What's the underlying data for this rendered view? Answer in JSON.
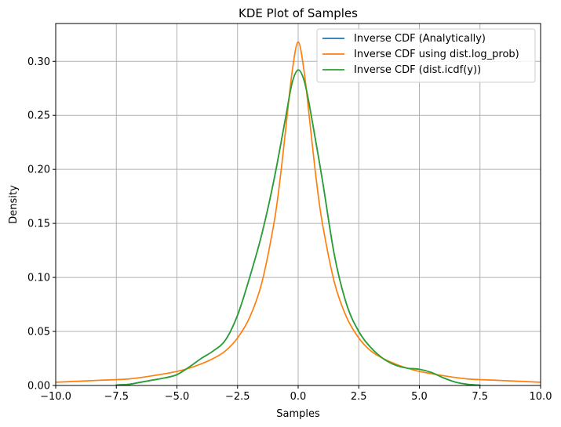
{
  "chart_data": {
    "type": "line",
    "title": "KDE Plot of Samples",
    "xlabel": "Samples",
    "ylabel": "Density",
    "xlim": [
      -10,
      10
    ],
    "ylim": [
      0,
      0.335
    ],
    "grid": true,
    "legend_position": "top-right",
    "xticks": [
      -10,
      -7.5,
      -5,
      -2.5,
      0,
      2.5,
      5,
      7.5,
      10
    ],
    "xtick_labels": [
      "−10.0",
      "−7.5",
      "−5.0",
      "−2.5",
      "0.0",
      "2.5",
      "5.0",
      "7.5",
      "10.0"
    ],
    "yticks": [
      0,
      0.05,
      0.1,
      0.15,
      0.2,
      0.25,
      0.3
    ],
    "ytick_labels": [
      "0.00",
      "0.05",
      "0.10",
      "0.15",
      "0.20",
      "0.25",
      "0.30"
    ],
    "series": [
      {
        "name": "Inverse CDF (Analytically)",
        "color": "#1f77b4",
        "x": [
          -7.5,
          -7.0,
          -6.5,
          -6.0,
          -5.5,
          -5.0,
          -4.5,
          -4.0,
          -3.5,
          -3.0,
          -2.5,
          -2.0,
          -1.5,
          -1.0,
          -0.5,
          -0.25,
          0.0,
          0.25,
          0.5,
          1.0,
          1.5,
          2.0,
          2.5,
          3.0,
          3.5,
          4.0,
          4.5,
          5.0,
          5.5,
          6.0,
          6.5,
          7.0,
          7.5
        ],
        "y": [
          0.0005,
          0.001,
          0.003,
          0.005,
          0.007,
          0.01,
          0.017,
          0.025,
          0.032,
          0.042,
          0.065,
          0.1,
          0.14,
          0.19,
          0.25,
          0.28,
          0.292,
          0.282,
          0.255,
          0.19,
          0.12,
          0.075,
          0.05,
          0.035,
          0.025,
          0.019,
          0.016,
          0.015,
          0.012,
          0.007,
          0.003,
          0.001,
          0.0003
        ]
      },
      {
        "name": "Inverse CDF using dist.log_prob)",
        "color": "#ff7f0e",
        "x": [
          -10,
          -9,
          -8,
          -7,
          -6,
          -5,
          -4.5,
          -4,
          -3.5,
          -3,
          -2.5,
          -2,
          -1.5,
          -1,
          -0.75,
          -0.5,
          -0.25,
          0.0,
          0.25,
          0.5,
          0.75,
          1,
          1.5,
          2,
          2.5,
          3,
          3.5,
          4,
          4.5,
          5,
          6,
          7,
          8,
          9,
          10
        ],
        "y": [
          0.003,
          0.004,
          0.005,
          0.006,
          0.009,
          0.013,
          0.016,
          0.02,
          0.025,
          0.032,
          0.044,
          0.063,
          0.095,
          0.15,
          0.19,
          0.24,
          0.29,
          0.318,
          0.29,
          0.24,
          0.19,
          0.15,
          0.095,
          0.063,
          0.044,
          0.032,
          0.025,
          0.02,
          0.016,
          0.013,
          0.009,
          0.006,
          0.005,
          0.004,
          0.003
        ]
      },
      {
        "name": "Inverse CDF (dist.icdf(y))",
        "color": "#2ca02c",
        "x": [
          -7.5,
          -7.0,
          -6.5,
          -6.0,
          -5.5,
          -5.0,
          -4.5,
          -4.0,
          -3.5,
          -3.0,
          -2.5,
          -2.0,
          -1.5,
          -1.0,
          -0.5,
          -0.25,
          0.0,
          0.25,
          0.5,
          1.0,
          1.5,
          2.0,
          2.5,
          3.0,
          3.5,
          4.0,
          4.5,
          5.0,
          5.5,
          6.0,
          6.5,
          7.0,
          7.5
        ],
        "y": [
          0.0005,
          0.001,
          0.003,
          0.005,
          0.007,
          0.01,
          0.017,
          0.025,
          0.032,
          0.042,
          0.065,
          0.1,
          0.14,
          0.19,
          0.25,
          0.28,
          0.292,
          0.282,
          0.255,
          0.19,
          0.12,
          0.075,
          0.05,
          0.035,
          0.025,
          0.019,
          0.016,
          0.015,
          0.012,
          0.007,
          0.003,
          0.001,
          0.0003
        ]
      }
    ]
  }
}
